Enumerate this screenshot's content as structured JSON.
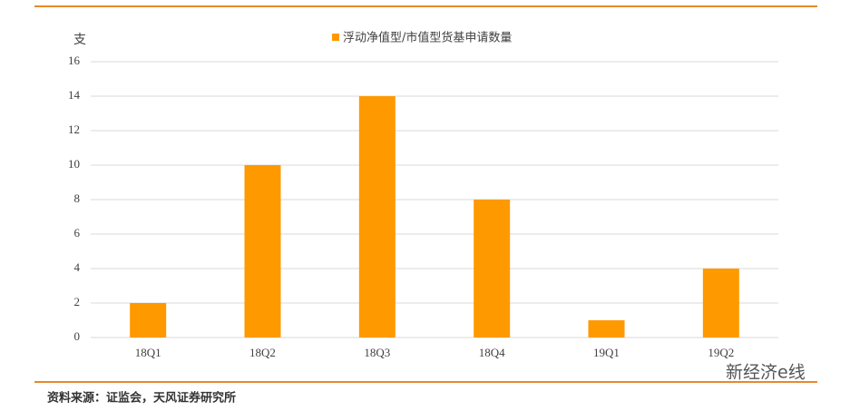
{
  "chart_data": {
    "type": "bar",
    "y_label": "支",
    "categories": [
      "18Q1",
      "18Q2",
      "18Q3",
      "18Q4",
      "19Q1",
      "19Q2"
    ],
    "series": [
      {
        "name": "浮动净值型/市值型货基申请数量",
        "color": "#ff9900",
        "values": [
          2,
          10,
          14,
          8,
          1,
          4
        ]
      }
    ],
    "ylim": [
      0,
      16
    ],
    "yticks": [
      0,
      2,
      4,
      6,
      8,
      10,
      12,
      14,
      16
    ],
    "grid": true,
    "legend": "top"
  },
  "source": "资料来源：证监会，天风证券研究所",
  "watermark": "新经济e线"
}
